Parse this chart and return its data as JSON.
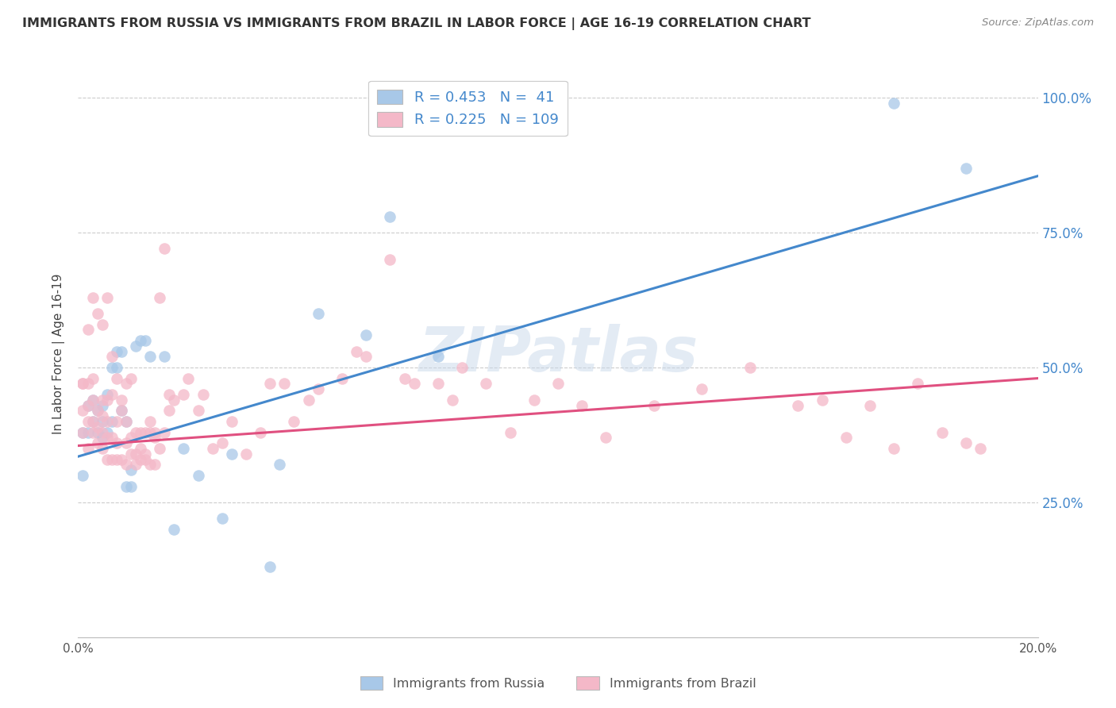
{
  "title": "IMMIGRANTS FROM RUSSIA VS IMMIGRANTS FROM BRAZIL IN LABOR FORCE | AGE 16-19 CORRELATION CHART",
  "source": "Source: ZipAtlas.com",
  "ylabel": "In Labor Force | Age 16-19",
  "xlim": [
    0.0,
    0.2
  ],
  "ylim": [
    0.0,
    1.05
  ],
  "russia_R": 0.453,
  "russia_N": 41,
  "brazil_R": 0.225,
  "brazil_N": 109,
  "russia_color": "#a8c8e8",
  "brazil_color": "#f4b8c8",
  "russia_line_color": "#4488cc",
  "brazil_line_color": "#e05080",
  "russia_line_y0": 0.335,
  "russia_line_y1": 0.855,
  "brazil_line_y0": 0.355,
  "brazil_line_y1": 0.48,
  "watermark": "ZIPatlas",
  "russia_scatter_x": [
    0.001,
    0.001,
    0.002,
    0.002,
    0.003,
    0.003,
    0.004,
    0.004,
    0.005,
    0.005,
    0.005,
    0.006,
    0.006,
    0.007,
    0.007,
    0.008,
    0.008,
    0.009,
    0.009,
    0.01,
    0.01,
    0.011,
    0.011,
    0.012,
    0.013,
    0.014,
    0.015,
    0.018,
    0.02,
    0.022,
    0.025,
    0.03,
    0.032,
    0.04,
    0.042,
    0.05,
    0.06,
    0.065,
    0.075,
    0.17,
    0.185
  ],
  "russia_scatter_y": [
    0.3,
    0.38,
    0.43,
    0.38,
    0.4,
    0.44,
    0.38,
    0.42,
    0.37,
    0.4,
    0.43,
    0.38,
    0.45,
    0.4,
    0.5,
    0.5,
    0.53,
    0.53,
    0.42,
    0.28,
    0.4,
    0.28,
    0.31,
    0.54,
    0.55,
    0.55,
    0.52,
    0.52,
    0.2,
    0.35,
    0.3,
    0.22,
    0.34,
    0.13,
    0.32,
    0.6,
    0.56,
    0.78,
    0.52,
    0.99,
    0.87
  ],
  "brazil_scatter_x": [
    0.001,
    0.001,
    0.001,
    0.002,
    0.002,
    0.002,
    0.002,
    0.003,
    0.003,
    0.003,
    0.003,
    0.004,
    0.004,
    0.004,
    0.005,
    0.005,
    0.005,
    0.005,
    0.006,
    0.006,
    0.006,
    0.006,
    0.007,
    0.007,
    0.007,
    0.008,
    0.008,
    0.008,
    0.009,
    0.009,
    0.01,
    0.01,
    0.01,
    0.011,
    0.011,
    0.012,
    0.012,
    0.013,
    0.013,
    0.014,
    0.014,
    0.015,
    0.015,
    0.016,
    0.016,
    0.017,
    0.018,
    0.019,
    0.02,
    0.022,
    0.023,
    0.025,
    0.026,
    0.028,
    0.03,
    0.032,
    0.035,
    0.038,
    0.04,
    0.043,
    0.045,
    0.048,
    0.05,
    0.055,
    0.058,
    0.06,
    0.065,
    0.068,
    0.07,
    0.075,
    0.078,
    0.08,
    0.085,
    0.09,
    0.095,
    0.1,
    0.105,
    0.11,
    0.12,
    0.13,
    0.14,
    0.15,
    0.155,
    0.16,
    0.165,
    0.17,
    0.175,
    0.18,
    0.185,
    0.188,
    0.001,
    0.002,
    0.003,
    0.004,
    0.005,
    0.006,
    0.007,
    0.008,
    0.009,
    0.01,
    0.011,
    0.012,
    0.013,
    0.014,
    0.015,
    0.016,
    0.017,
    0.018,
    0.019
  ],
  "brazil_scatter_y": [
    0.38,
    0.42,
    0.47,
    0.35,
    0.4,
    0.43,
    0.47,
    0.38,
    0.4,
    0.44,
    0.48,
    0.36,
    0.39,
    0.42,
    0.35,
    0.38,
    0.41,
    0.44,
    0.33,
    0.37,
    0.4,
    0.44,
    0.33,
    0.37,
    0.45,
    0.33,
    0.36,
    0.4,
    0.33,
    0.42,
    0.32,
    0.36,
    0.4,
    0.34,
    0.37,
    0.34,
    0.38,
    0.33,
    0.38,
    0.33,
    0.38,
    0.32,
    0.38,
    0.32,
    0.38,
    0.35,
    0.38,
    0.42,
    0.44,
    0.45,
    0.48,
    0.42,
    0.45,
    0.35,
    0.36,
    0.4,
    0.34,
    0.38,
    0.47,
    0.47,
    0.4,
    0.44,
    0.46,
    0.48,
    0.53,
    0.52,
    0.7,
    0.48,
    0.47,
    0.47,
    0.44,
    0.5,
    0.47,
    0.38,
    0.44,
    0.47,
    0.43,
    0.37,
    0.43,
    0.46,
    0.5,
    0.43,
    0.44,
    0.37,
    0.43,
    0.35,
    0.47,
    0.38,
    0.36,
    0.35,
    0.47,
    0.57,
    0.63,
    0.6,
    0.58,
    0.63,
    0.52,
    0.48,
    0.44,
    0.47,
    0.48,
    0.32,
    0.35,
    0.34,
    0.4,
    0.37,
    0.63,
    0.72,
    0.45
  ]
}
